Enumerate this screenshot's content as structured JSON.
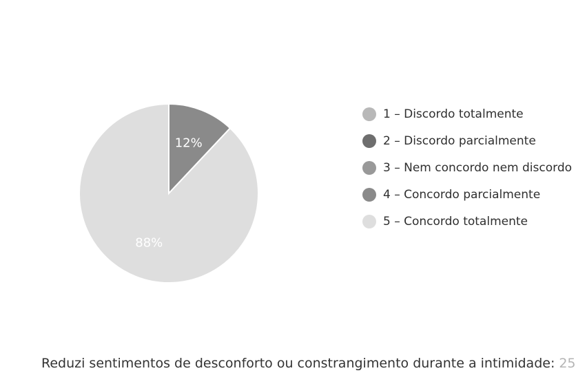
{
  "chart_data": {
    "type": "pie",
    "categories": [
      "1 – Discordo totalmente",
      "2 – Discordo parcialmente",
      "3 – Nem concordo nem discordo",
      "4 – Concordo parcialmente",
      "5 – Concordo totalmente"
    ],
    "values": [
      0,
      0,
      0,
      12,
      88
    ],
    "slice_labels": [
      "",
      "",
      "",
      "12%",
      "88%"
    ],
    "colors": [
      "#b8b8b8",
      "#6e6e6e",
      "#999999",
      "#8a8a8a",
      "#dedede"
    ],
    "legend_position": "right",
    "start_angle": "top, clockwise"
  },
  "caption": {
    "text": "Reduzi sentimentos de desconforto ou constrangimento durante a intimidade:",
    "page_number": "25"
  }
}
